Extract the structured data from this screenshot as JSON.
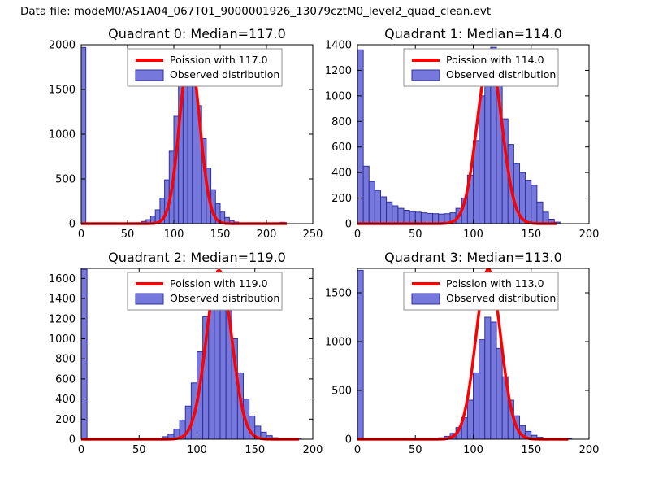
{
  "figure": {
    "title": "Data file: modeM0/AS1A04_067T01_9000001926_13079cztM0_level2_quad_clean.evt"
  },
  "style": {
    "bar_fill": "#7678dc",
    "bar_edge": "#30309c",
    "curve_color": "#ff0000",
    "frame_color": "#000000",
    "text_color": "#000000",
    "legend_border": "#8f8f8f",
    "background": "#ffffff"
  },
  "chart_data": [
    {
      "type": "bar",
      "subtype": "histogram-with-fit",
      "title": "Quadrant 0: Median=117.0",
      "median": 117.0,
      "legend": {
        "curve": "Poission with 117.0",
        "bars": "Observed distribution"
      },
      "xlim": [
        0,
        250
      ],
      "ylim": [
        0,
        2000
      ],
      "xticks": [
        0,
        50,
        100,
        150,
        200,
        250
      ],
      "yticks": [
        0,
        500,
        1000,
        1500,
        2000
      ],
      "bin_width": 5,
      "bars": [
        [
          0,
          1970
        ],
        [
          60,
          10
        ],
        [
          65,
          25
        ],
        [
          70,
          45
        ],
        [
          75,
          85
        ],
        [
          80,
          155
        ],
        [
          85,
          285
        ],
        [
          90,
          490
        ],
        [
          95,
          810
        ],
        [
          100,
          1200
        ],
        [
          105,
          1580
        ],
        [
          110,
          1820
        ],
        [
          115,
          1850
        ],
        [
          120,
          1650
        ],
        [
          125,
          1320
        ],
        [
          130,
          950
        ],
        [
          135,
          620
        ],
        [
          140,
          380
        ],
        [
          145,
          225
        ],
        [
          150,
          130
        ],
        [
          155,
          70
        ],
        [
          160,
          35
        ],
        [
          165,
          18
        ],
        [
          170,
          8
        ],
        [
          215,
          15
        ]
      ],
      "poisson": {
        "mean": 117.0,
        "amplitude": 1900,
        "x_end": 222
      }
    },
    {
      "type": "bar",
      "subtype": "histogram-with-fit",
      "title": "Quadrant 1: Median=114.0",
      "median": 114.0,
      "legend": {
        "curve": "Poission with 114.0",
        "bars": "Observed distribution"
      },
      "xlim": [
        0,
        200
      ],
      "ylim": [
        0,
        1400
      ],
      "xticks": [
        0,
        50,
        100,
        150,
        200
      ],
      "yticks": [
        0,
        200,
        400,
        600,
        800,
        1000,
        1200,
        1400
      ],
      "bin_width": 5,
      "bars": [
        [
          0,
          1360
        ],
        [
          5,
          450
        ],
        [
          10,
          330
        ],
        [
          15,
          260
        ],
        [
          20,
          210
        ],
        [
          25,
          170
        ],
        [
          30,
          140
        ],
        [
          35,
          120
        ],
        [
          40,
          105
        ],
        [
          45,
          95
        ],
        [
          50,
          90
        ],
        [
          55,
          85
        ],
        [
          60,
          80
        ],
        [
          65,
          78
        ],
        [
          70,
          75
        ],
        [
          75,
          78
        ],
        [
          80,
          85
        ],
        [
          85,
          120
        ],
        [
          90,
          200
        ],
        [
          95,
          380
        ],
        [
          100,
          650
        ],
        [
          105,
          1000
        ],
        [
          110,
          1290
        ],
        [
          115,
          1380
        ],
        [
          120,
          1100
        ],
        [
          125,
          820
        ],
        [
          130,
          620
        ],
        [
          135,
          470
        ],
        [
          140,
          400
        ],
        [
          145,
          340
        ],
        [
          150,
          300
        ],
        [
          155,
          170
        ],
        [
          160,
          90
        ],
        [
          165,
          35
        ],
        [
          170,
          12
        ]
      ],
      "poisson": {
        "mean": 114.0,
        "amplitude": 1300,
        "x_end": 172
      }
    },
    {
      "type": "bar",
      "subtype": "histogram-with-fit",
      "title": "Quadrant 2: Median=119.0",
      "median": 119.0,
      "legend": {
        "curve": "Poission with 119.0",
        "bars": "Observed distribution"
      },
      "xlim": [
        0,
        200
      ],
      "ylim": [
        0,
        1700
      ],
      "xticks": [
        0,
        50,
        100,
        150,
        200
      ],
      "yticks": [
        0,
        200,
        400,
        600,
        800,
        1000,
        1200,
        1400,
        1600
      ],
      "bin_width": 5,
      "bars": [
        [
          0,
          1690
        ],
        [
          65,
          12
        ],
        [
          70,
          25
        ],
        [
          75,
          50
        ],
        [
          80,
          100
        ],
        [
          85,
          190
        ],
        [
          90,
          330
        ],
        [
          95,
          560
        ],
        [
          100,
          870
        ],
        [
          105,
          1220
        ],
        [
          110,
          1500
        ],
        [
          115,
          1660
        ],
        [
          120,
          1600
        ],
        [
          125,
          1340
        ],
        [
          130,
          1000
        ],
        [
          135,
          660
        ],
        [
          140,
          400
        ],
        [
          145,
          230
        ],
        [
          150,
          130
        ],
        [
          155,
          70
        ],
        [
          160,
          35
        ],
        [
          165,
          15
        ],
        [
          185,
          10
        ]
      ],
      "poisson": {
        "mean": 119.0,
        "amplitude": 1680,
        "x_end": 188
      }
    },
    {
      "type": "bar",
      "subtype": "histogram-with-fit",
      "title": "Quadrant 3: Median=113.0",
      "median": 113.0,
      "legend": {
        "curve": "Poission with 113.0",
        "bars": "Observed distribution"
      },
      "xlim": [
        0,
        200
      ],
      "ylim": [
        0,
        1750
      ],
      "xticks": [
        0,
        50,
        100,
        150,
        200
      ],
      "yticks": [
        0,
        500,
        1000,
        1500
      ],
      "bin_width": 5,
      "bars": [
        [
          0,
          1730
        ],
        [
          70,
          15
        ],
        [
          75,
          30
        ],
        [
          80,
          60
        ],
        [
          85,
          120
        ],
        [
          90,
          220
        ],
        [
          95,
          400
        ],
        [
          100,
          680
        ],
        [
          105,
          1020
        ],
        [
          110,
          1250
        ],
        [
          115,
          1200
        ],
        [
          120,
          930
        ],
        [
          125,
          640
        ],
        [
          130,
          400
        ],
        [
          135,
          240
        ],
        [
          140,
          140
        ],
        [
          145,
          80
        ],
        [
          150,
          40
        ],
        [
          155,
          20
        ],
        [
          160,
          10
        ],
        [
          180,
          8
        ]
      ],
      "poisson": {
        "mean": 113.0,
        "amplitude": 1740,
        "x_end": 182
      }
    }
  ]
}
